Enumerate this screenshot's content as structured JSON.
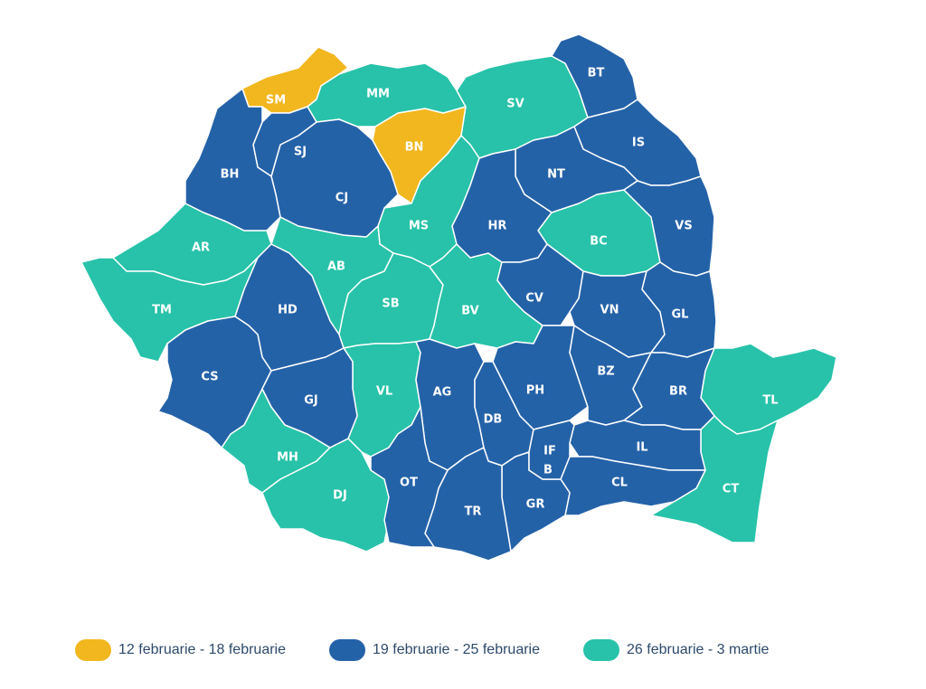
{
  "periods": [
    {
      "label": "12 februarie - 18 februarie",
      "color": "#F2B71F"
    },
    {
      "label": "19 februarie - 25 februarie",
      "color": "#2462A8"
    },
    {
      "label": "26 februarie - 3 martie",
      "color": "#27C2A9"
    }
  ],
  "counties": [
    {
      "code": "SM",
      "period": 0
    },
    {
      "code": "BN",
      "period": 0
    },
    {
      "code": "MM",
      "period": 2
    },
    {
      "code": "SV",
      "period": 2
    },
    {
      "code": "BC",
      "period": 2
    },
    {
      "code": "MS",
      "period": 2
    },
    {
      "code": "AR",
      "period": 2
    },
    {
      "code": "TM",
      "period": 2
    },
    {
      "code": "AB",
      "period": 2
    },
    {
      "code": "SB",
      "period": 2
    },
    {
      "code": "BV",
      "period": 2
    },
    {
      "code": "VL",
      "period": 2
    },
    {
      "code": "MH",
      "period": 2
    },
    {
      "code": "DJ",
      "period": 2
    },
    {
      "code": "TL",
      "period": 2
    },
    {
      "code": "CT",
      "period": 2
    },
    {
      "code": "BT",
      "period": 1
    },
    {
      "code": "IS",
      "period": 1
    },
    {
      "code": "NT",
      "period": 1
    },
    {
      "code": "VS",
      "period": 1
    },
    {
      "code": "HR",
      "period": 1
    },
    {
      "code": "CJ",
      "period": 1
    },
    {
      "code": "SJ",
      "period": 1
    },
    {
      "code": "BH",
      "period": 1
    },
    {
      "code": "HD",
      "period": 1
    },
    {
      "code": "CS",
      "period": 1
    },
    {
      "code": "GJ",
      "period": 1
    },
    {
      "code": "CV",
      "period": 1
    },
    {
      "code": "VN",
      "period": 1
    },
    {
      "code": "GL",
      "period": 1
    },
    {
      "code": "AG",
      "period": 1
    },
    {
      "code": "PH",
      "period": 1
    },
    {
      "code": "BZ",
      "period": 1
    },
    {
      "code": "BR",
      "period": 1
    },
    {
      "code": "IL",
      "period": 1
    },
    {
      "code": "CL",
      "period": 1
    },
    {
      "code": "DB",
      "period": 1
    },
    {
      "code": "GR",
      "period": 1
    },
    {
      "code": "TR",
      "period": 1
    },
    {
      "code": "OT",
      "period": 1
    },
    {
      "code": "IF",
      "period": 1
    },
    {
      "code": "B",
      "period": 1
    }
  ]
}
